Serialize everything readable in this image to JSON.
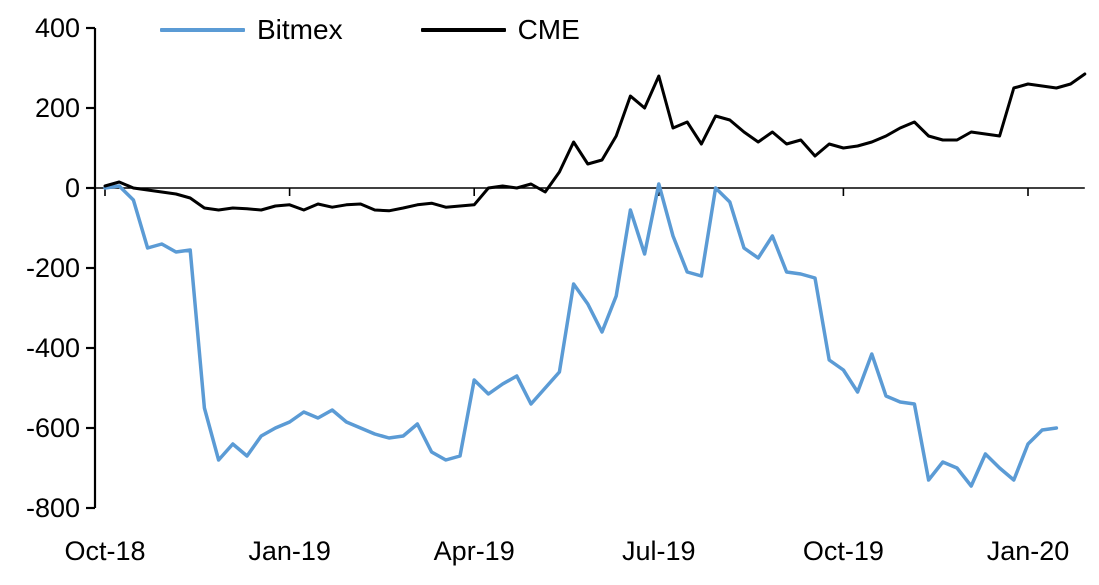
{
  "chart_data": {
    "type": "line",
    "title": "",
    "xlabel": "",
    "ylabel": "",
    "ylim": [
      -800,
      400
    ],
    "y_ticks": [
      400,
      200,
      0,
      -200,
      -400,
      -600,
      -800
    ],
    "x_labels": [
      "Oct-18",
      "Jan-19",
      "Apr-19",
      "Jul-19",
      "Oct-19",
      "Jan-20"
    ],
    "x_label_indices": [
      0,
      13,
      26,
      39,
      52,
      65
    ],
    "grid": false,
    "legend_position": "top",
    "axis_color": "#000000",
    "series": [
      {
        "name": "Bitmex",
        "color": "#5B9BD5",
        "width": 3.5,
        "values": [
          0,
          5,
          -30,
          -150,
          -140,
          -160,
          -155,
          -550,
          -680,
          -640,
          -670,
          -620,
          -600,
          -585,
          -560,
          -575,
          -555,
          -585,
          -600,
          -615,
          -625,
          -620,
          -590,
          -660,
          -680,
          -670,
          -480,
          -515,
          -490,
          -470,
          -540,
          -500,
          -460,
          -240,
          -290,
          -360,
          -270,
          -55,
          -165,
          10,
          -120,
          -210,
          -220,
          0,
          -35,
          -150,
          -175,
          -120,
          -210,
          -215,
          -225,
          -430,
          -455,
          -510,
          -415,
          -520,
          -535,
          -540,
          -730,
          -685,
          -700,
          -745,
          -665,
          -700,
          -730,
          -640,
          -605,
          -600
        ]
      },
      {
        "name": "CME",
        "color": "#000000",
        "width": 3,
        "values": [
          5,
          15,
          0,
          -5,
          -10,
          -15,
          -25,
          -50,
          -55,
          -50,
          -52,
          -55,
          -45,
          -42,
          -55,
          -40,
          -48,
          -42,
          -40,
          -55,
          -57,
          -50,
          -42,
          -38,
          -48,
          -45,
          -42,
          0,
          5,
          0,
          10,
          -10,
          40,
          115,
          60,
          70,
          130,
          230,
          200,
          280,
          150,
          165,
          110,
          180,
          170,
          140,
          115,
          140,
          110,
          120,
          80,
          110,
          100,
          105,
          115,
          130,
          150,
          165,
          130,
          120,
          120,
          140,
          135,
          130,
          250,
          260,
          255,
          250,
          260,
          285
        ]
      }
    ]
  }
}
